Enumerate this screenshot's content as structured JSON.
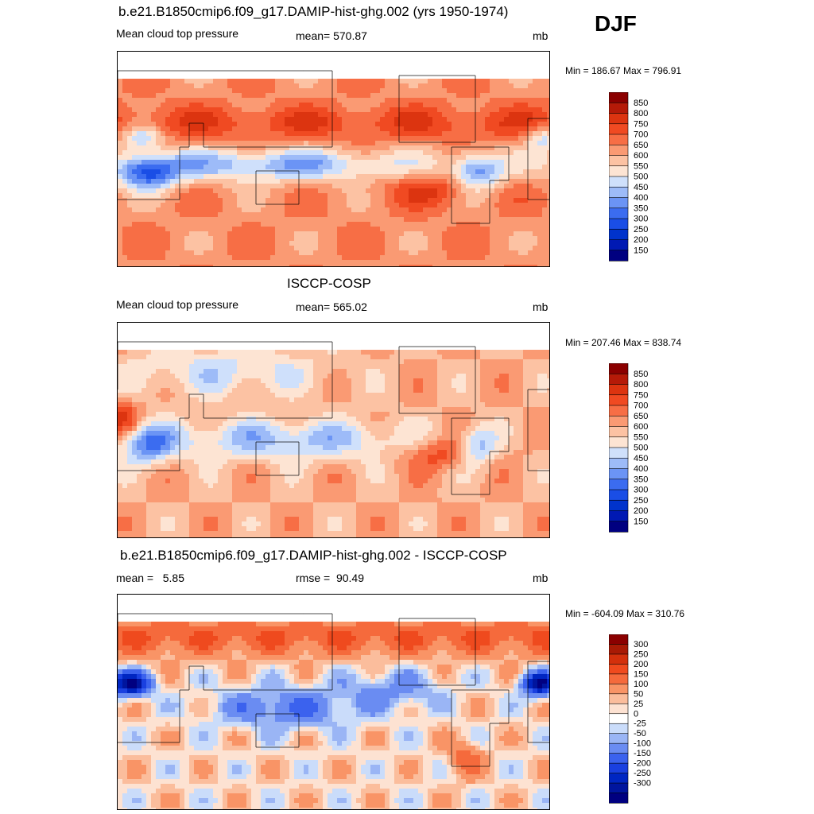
{
  "season": "DJF",
  "colors": {
    "abs_palette": [
      "#000080",
      "#0019b3",
      "#0033cc",
      "#1a4ee6",
      "#3b6cf0",
      "#6b94f5",
      "#9dbbf8",
      "#cfe0fb",
      "#fde4d3",
      "#fcc2a3",
      "#fa9a73",
      "#f76e45",
      "#f04a22",
      "#dc3410",
      "#b51a08",
      "#8b0000"
    ],
    "diff_palette": [
      "#000080",
      "#00159e",
      "#0026c2",
      "#1a40e0",
      "#3b62ee",
      "#6a8cf2",
      "#9ab5f5",
      "#cadcfa",
      "#ffffff",
      "#fde2d2",
      "#fbbd9c",
      "#f99466",
      "#f56a3c",
      "#ef4a1e",
      "#d3300c",
      "#a81a05",
      "#8b0000"
    ],
    "land_white": "#ffffff",
    "coast": "#000000"
  },
  "panels": [
    {
      "id": "model",
      "title": "b.e21.B1850cmip6.f09_g17.DAMIP-hist-ghg.002 (yrs 1950-1974)",
      "left_label": "Mean cloud top pressure",
      "center_label": "mean= 570.87",
      "units": "mb",
      "minmax": "Min = 186.67 Max = 796.91"
    },
    {
      "id": "obs",
      "title": "ISCCP-COSP",
      "left_label": "Mean cloud top pressure",
      "center_label": "mean= 565.02",
      "units": "mb",
      "minmax": "Min = 207.46 Max = 838.74"
    },
    {
      "id": "diff",
      "title": "b.e21.B1850cmip6.f09_g17.DAMIP-hist-ghg.002 - ISCCP-COSP",
      "left_label": "mean =   5.85",
      "center_label": "rmse =  90.49",
      "units": "mb",
      "minmax": "Min = -604.09 Max = 310.76"
    }
  ],
  "chart_data": [
    {
      "type": "heatmap",
      "title": "b.e21.B1850cmip6.f09_g17.DAMIP-hist-ghg.002 (yrs 1950-1974)",
      "variable": "Mean cloud top pressure",
      "units": "mb",
      "mean": 570.87,
      "min": 186.67,
      "max": 796.91,
      "colorbar_levels": [
        "850",
        "800",
        "750",
        "700",
        "650",
        "600",
        "550",
        "500",
        "450",
        "400",
        "350",
        "300",
        "250",
        "200",
        "150"
      ]
    },
    {
      "type": "heatmap",
      "title": "ISCCP-COSP",
      "variable": "Mean cloud top pressure",
      "units": "mb",
      "mean": 565.02,
      "min": 207.46,
      "max": 838.74,
      "colorbar_levels": [
        "850",
        "800",
        "750",
        "700",
        "650",
        "600",
        "550",
        "500",
        "450",
        "400",
        "350",
        "300",
        "250",
        "200",
        "150"
      ]
    },
    {
      "type": "heatmap",
      "title": "b.e21.B1850cmip6.f09_g17.DAMIP-hist-ghg.002 - ISCCP-COSP",
      "units": "mb",
      "mean": 5.85,
      "rmse": 90.49,
      "min": -604.09,
      "max": 310.76,
      "colorbar_levels": [
        "300",
        "250",
        "200",
        "150",
        "100",
        "50",
        "25",
        "0",
        "-25",
        "-50",
        "-100",
        "-150",
        "-200",
        "-250",
        "-300"
      ]
    }
  ]
}
